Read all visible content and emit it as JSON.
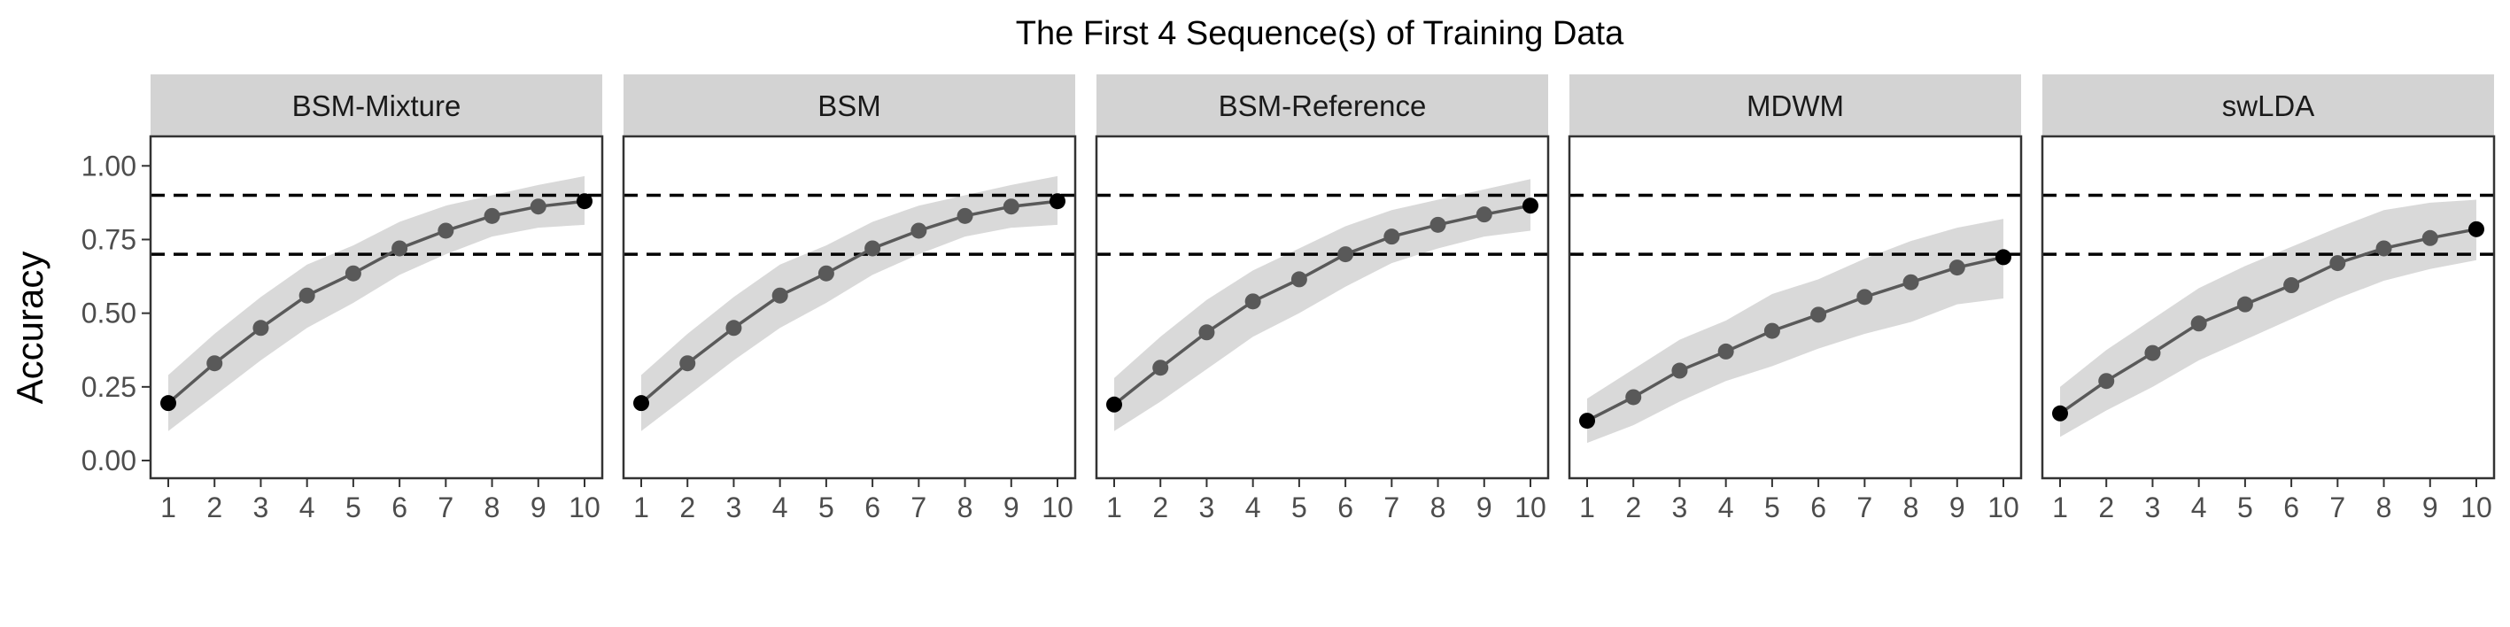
{
  "chart_data": {
    "type": "line",
    "title": "The First 4 Sequence(s) of Training Data",
    "xlabel": "",
    "ylabel": "Accuracy",
    "x": [
      1,
      2,
      3,
      4,
      5,
      6,
      7,
      8,
      9,
      10
    ],
    "ylim": [
      -0.06,
      1.1
    ],
    "yticks": [
      0.0,
      0.25,
      0.5,
      0.75,
      1.0
    ],
    "ytick_labels": [
      "0.00",
      "0.25",
      "0.50",
      "0.75",
      "1.00"
    ],
    "reference_lines": [
      0.9,
      0.7
    ],
    "grid": false,
    "colors": {
      "line": "#595959",
      "band": "#d9d9d9",
      "strip": "#d3d3d3",
      "first_last_point": "#000000"
    },
    "panels": [
      {
        "name": "BSM-Mixture",
        "values": [
          0.195,
          0.33,
          0.45,
          0.56,
          0.635,
          0.72,
          0.78,
          0.83,
          0.862,
          0.88
        ],
        "lower": [
          0.1,
          0.22,
          0.34,
          0.45,
          0.535,
          0.63,
          0.7,
          0.76,
          0.79,
          0.8
        ],
        "upper": [
          0.29,
          0.43,
          0.555,
          0.665,
          0.73,
          0.81,
          0.865,
          0.9,
          0.935,
          0.965
        ]
      },
      {
        "name": "BSM",
        "values": [
          0.195,
          0.33,
          0.45,
          0.56,
          0.635,
          0.72,
          0.78,
          0.83,
          0.862,
          0.88
        ],
        "lower": [
          0.1,
          0.22,
          0.34,
          0.45,
          0.535,
          0.63,
          0.7,
          0.76,
          0.79,
          0.8
        ],
        "upper": [
          0.29,
          0.43,
          0.555,
          0.665,
          0.73,
          0.81,
          0.865,
          0.9,
          0.935,
          0.965
        ]
      },
      {
        "name": "BSM-Reference",
        "values": [
          0.19,
          0.315,
          0.435,
          0.54,
          0.615,
          0.7,
          0.76,
          0.8,
          0.835,
          0.865
        ],
        "lower": [
          0.1,
          0.2,
          0.31,
          0.42,
          0.5,
          0.59,
          0.67,
          0.72,
          0.76,
          0.78
        ],
        "upper": [
          0.28,
          0.42,
          0.545,
          0.645,
          0.72,
          0.795,
          0.85,
          0.885,
          0.92,
          0.955
        ]
      },
      {
        "name": "MDWM",
        "values": [
          0.135,
          0.215,
          0.305,
          0.37,
          0.44,
          0.495,
          0.555,
          0.605,
          0.655,
          0.69
        ],
        "lower": [
          0.06,
          0.12,
          0.2,
          0.27,
          0.32,
          0.38,
          0.43,
          0.47,
          0.53,
          0.55
        ],
        "upper": [
          0.21,
          0.31,
          0.41,
          0.475,
          0.565,
          0.615,
          0.685,
          0.745,
          0.79,
          0.82
        ]
      },
      {
        "name": "swLDA",
        "values": [
          0.16,
          0.27,
          0.365,
          0.465,
          0.53,
          0.595,
          0.67,
          0.72,
          0.755,
          0.785
        ],
        "lower": [
          0.08,
          0.17,
          0.25,
          0.34,
          0.41,
          0.48,
          0.55,
          0.61,
          0.65,
          0.68
        ],
        "upper": [
          0.25,
          0.375,
          0.48,
          0.585,
          0.66,
          0.725,
          0.79,
          0.85,
          0.875,
          0.885
        ]
      }
    ]
  }
}
